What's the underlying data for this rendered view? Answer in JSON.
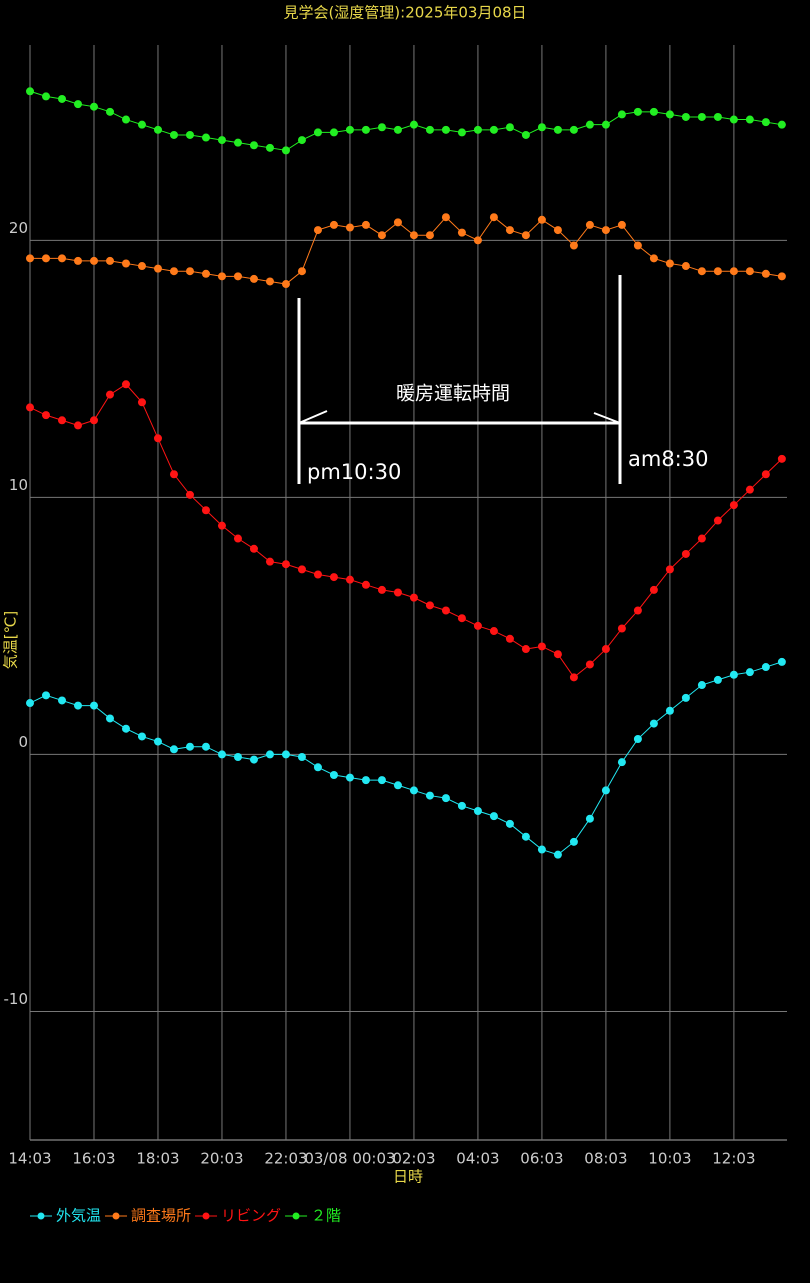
{
  "chart_data": {
    "type": "line",
    "title": "見学会(湿度管理):2025年03月08日",
    "x_label": "日時",
    "y_label": "気温[℃]",
    "x": [
      0,
      0.5,
      1,
      1.5,
      2,
      2.5,
      3,
      3.5,
      4,
      4.5,
      5,
      5.5,
      6,
      6.5,
      7,
      7.5,
      8,
      8.5,
      9,
      9.5,
      10,
      10.5,
      11,
      11.5,
      12,
      12.5,
      13,
      13.5,
      14,
      14.5,
      15,
      15.5,
      16,
      16.5,
      17,
      17.5,
      18,
      18.5,
      19,
      19.5,
      20,
      20.5,
      21,
      21.5,
      22,
      22.5,
      23,
      23.5
    ],
    "xlim": [
      0,
      23.66
    ],
    "xticks": [
      {
        "value": 0,
        "label": "14:03"
      },
      {
        "value": 2,
        "label": "16:03"
      },
      {
        "value": 4,
        "label": "18:03"
      },
      {
        "value": 6,
        "label": "20:03"
      },
      {
        "value": 8,
        "label": "22:03"
      },
      {
        "value": 10,
        "label": "03/08 00:03"
      },
      {
        "value": 12,
        "label": "02:03"
      },
      {
        "value": 14,
        "label": "04:03"
      },
      {
        "value": 16,
        "label": "06:03"
      },
      {
        "value": 18,
        "label": "08:03"
      },
      {
        "value": 20,
        "label": "10:03"
      },
      {
        "value": 22,
        "label": "12:03"
      }
    ],
    "ylim": [
      -15,
      27.6
    ],
    "yticks": [
      -10,
      0,
      10,
      20
    ],
    "grid": true,
    "legend": "bottom-left",
    "series": [
      {
        "name": "外気温",
        "color": "#22e8f2",
        "values": [
          2.0,
          2.3,
          2.1,
          1.9,
          1.9,
          1.4,
          1.0,
          0.7,
          0.5,
          0.2,
          0.3,
          0.3,
          0.0,
          -0.1,
          -0.2,
          0,
          0,
          -0.1,
          -0.5,
          -0.8,
          -0.9,
          -1.0,
          -1.0,
          -1.2,
          -1.4,
          -1.6,
          -1.7,
          -2.0,
          -2.2,
          -2.4,
          -2.7,
          -3.2,
          -3.7,
          -3.9,
          -3.4,
          -2.5,
          -1.4,
          -0.3,
          0.6,
          1.2,
          1.7,
          2.2,
          2.7,
          2.9,
          3.1,
          3.2,
          3.4,
          3.6
        ]
      },
      {
        "name": "調査場所",
        "color": "#ff7a1a",
        "values": [
          19.3,
          19.3,
          19.3,
          19.2,
          19.2,
          19.2,
          19.1,
          19.0,
          18.9,
          18.8,
          18.8,
          18.7,
          18.6,
          18.6,
          18.5,
          18.4,
          18.3,
          18.8,
          20.4,
          20.6,
          20.5,
          20.6,
          20.2,
          20.7,
          20.2,
          20.2,
          20.9,
          20.3,
          20.0,
          20.9,
          20.4,
          20.2,
          20.8,
          20.4,
          19.8,
          20.6,
          20.4,
          20.6,
          19.8,
          19.3,
          19.1,
          19.0,
          18.8,
          18.8,
          18.8,
          18.8,
          18.7,
          18.6
        ]
      },
      {
        "name": "リビング",
        "color": "#ff1414",
        "values": [
          13.5,
          13.2,
          13.0,
          12.8,
          13.0,
          14.0,
          14.4,
          13.7,
          12.3,
          10.9,
          10.1,
          9.5,
          8.9,
          8.4,
          8.0,
          7.5,
          7.4,
          7.2,
          7.0,
          6.9,
          6.8,
          6.6,
          6.4,
          6.3,
          6.1,
          5.8,
          5.6,
          5.3,
          5.0,
          4.8,
          4.5,
          4.1,
          4.2,
          3.9,
          3.0,
          3.5,
          4.1,
          4.9,
          5.6,
          6.4,
          7.2,
          7.8,
          8.4,
          9.1,
          9.7,
          10.3,
          10.9,
          11.5
        ]
      },
      {
        "name": "２階",
        "color": "#22ee22",
        "values": [
          25.8,
          25.6,
          25.5,
          25.3,
          25.2,
          25.0,
          24.7,
          24.5,
          24.3,
          24.1,
          24.1,
          24.0,
          23.9,
          23.8,
          23.7,
          23.6,
          23.5,
          23.9,
          24.2,
          24.2,
          24.3,
          24.3,
          24.4,
          24.3,
          24.5,
          24.3,
          24.3,
          24.2,
          24.3,
          24.3,
          24.4,
          24.1,
          24.4,
          24.3,
          24.3,
          24.5,
          24.5,
          24.9,
          25.0,
          25.0,
          24.9,
          24.8,
          24.8,
          24.8,
          24.7,
          24.7,
          24.6,
          24.5
        ]
      }
    ],
    "annotations": [
      "暖房運転時間",
      "pm10:30",
      "am8:30"
    ]
  }
}
